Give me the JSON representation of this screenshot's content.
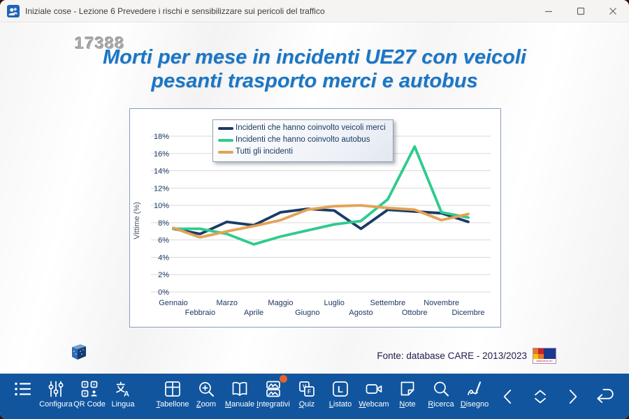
{
  "window": {
    "title": "Iniziale cose - Lezione 6 Prevedere i rischi e sensibilizzare sui pericoli del traffico",
    "controls": [
      {
        "name": "minimize-button",
        "icon": "minimize-icon"
      },
      {
        "name": "maximize-button",
        "icon": "maximize-icon"
      },
      {
        "name": "close-button",
        "icon": "close-icon"
      }
    ],
    "app_icon": "people-icon"
  },
  "slide": {
    "watermark": "17388",
    "title_lines": [
      "Morti per mese in incidenti UE27 con veicoli",
      "pesanti trasporto merci e autobus"
    ],
    "source": "Fonte: database CARE - 2013/2023",
    "erso_text": "www.erso.eu",
    "title_color": "#1976c8"
  },
  "chart_data": {
    "type": "line",
    "categories": [
      "Gennaio",
      "Febbraio",
      "Marzo",
      "Aprile",
      "Maggio",
      "Giugno",
      "Luglio",
      "Agosto",
      "Settembre",
      "Ottobre",
      "Novembre",
      "Dicembre"
    ],
    "series": [
      {
        "name": "Incidenti che hanno coinvolto veicoli merci",
        "color": "#1b3b66",
        "values": [
          7.3,
          6.7,
          8.1,
          7.7,
          9.2,
          9.6,
          9.4,
          7.3,
          9.5,
          9.3,
          9.1,
          8.1
        ]
      },
      {
        "name": "Incidenti che hanno coinvolto autobus",
        "color": "#2fcb8e",
        "values": [
          7.3,
          7.3,
          6.7,
          5.5,
          6.4,
          7.1,
          7.8,
          8.2,
          10.7,
          16.8,
          9.2,
          8.6
        ]
      },
      {
        "name": "Tutti gli incidenti",
        "color": "#e3a355",
        "values": [
          7.4,
          6.3,
          7.0,
          7.6,
          8.3,
          9.5,
          9.9,
          10.0,
          9.7,
          9.5,
          8.3,
          9.0
        ]
      }
    ],
    "title": "",
    "xlabel": "",
    "ylabel": "Vittime (%)",
    "ylim": [
      0,
      18
    ],
    "ytick_step": 2,
    "ytick_suffix": "%",
    "grid": true,
    "legend_position": "top-left",
    "grid_color": "#d9d9d9",
    "tick_color": "#1f3864",
    "ylabel_color": "#44546a"
  },
  "toolbar": {
    "background": "#11559e",
    "badge_color": "#e8622a",
    "items": [
      {
        "icon": "bullet-list-icon",
        "label": "",
        "underline": false
      },
      {
        "icon": "sliders-icon",
        "label": "Configura",
        "underline": false
      },
      {
        "icon": "qr-code-icon",
        "label": "QR Code",
        "underline": false
      },
      {
        "icon": "translate-icon",
        "label": "Lingua",
        "underline": false,
        "group_end": true
      },
      {
        "icon": "table-icon",
        "label": "Tabellone",
        "underline": true
      },
      {
        "icon": "zoom-in-icon",
        "label": "Zoom",
        "underline": true
      },
      {
        "icon": "book-icon",
        "label": "Manuale",
        "underline": true
      },
      {
        "icon": "images-icon",
        "label": "Integrativi",
        "underline": true,
        "badge": true
      },
      {
        "icon": "true-false-icon",
        "label": "Quiz",
        "underline": true
      },
      {
        "icon": "list-square-icon",
        "label": "Listato",
        "underline": true
      },
      {
        "icon": "webcam-icon",
        "label": "Webcam",
        "underline": true
      },
      {
        "icon": "note-icon",
        "label": "Note",
        "underline": true
      },
      {
        "icon": "search-icon",
        "label": "Ricerca",
        "underline": true
      },
      {
        "icon": "pen-icon",
        "label": "Disegno",
        "underline": true
      }
    ],
    "nav": [
      {
        "icon": "chevron-left-icon"
      },
      {
        "icon": "chevron-updown-icon"
      },
      {
        "icon": "chevron-right-icon"
      },
      {
        "icon": "return-arrow-icon"
      }
    ]
  }
}
